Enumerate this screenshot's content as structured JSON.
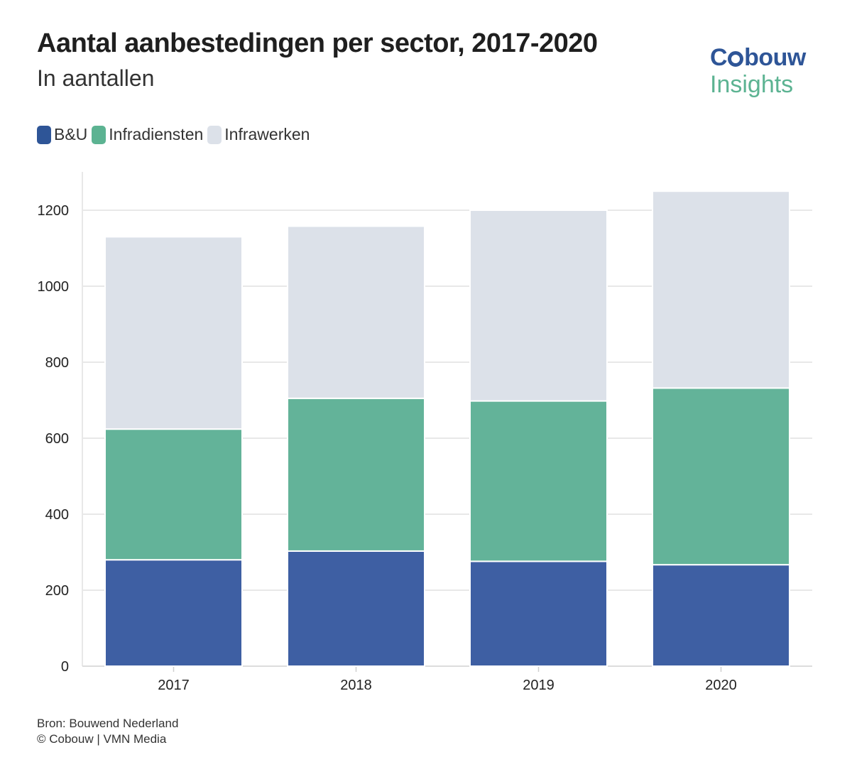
{
  "header": {
    "title": "Aantal aanbestedingen per sector, 2017-2020",
    "subtitle": "In aantallen"
  },
  "logo": {
    "brand_pre": "C",
    "brand_post": "bouw",
    "sub": "Insights"
  },
  "colors": {
    "bu": "#3e5fa3",
    "infradiensten": "#63b399",
    "infrawerken": "#dce1e9",
    "grid": "#e8e8e8"
  },
  "chart_data": {
    "type": "bar",
    "stacked": true,
    "title": "Aantal aanbestedingen per sector, 2017-2020",
    "subtitle": "In aantallen",
    "xlabel": "",
    "ylabel": "",
    "categories": [
      "2017",
      "2018",
      "2019",
      "2020"
    ],
    "series": [
      {
        "name": "B&U",
        "color": "#3e5fa3",
        "values": [
          280,
          303,
          276,
          267
        ]
      },
      {
        "name": "Infradiensten",
        "color": "#63b399",
        "values": [
          344,
          402,
          422,
          465
        ]
      },
      {
        "name": "Infrawerken",
        "color": "#dce1e9",
        "values": [
          506,
          453,
          502,
          518
        ]
      }
    ],
    "ylim": [
      0,
      1300
    ],
    "yticks": [
      0,
      200,
      400,
      600,
      800,
      1000,
      1200
    ],
    "grid": true,
    "legend": "top-left"
  },
  "footer": {
    "source": "Bron: Bouwend Nederland",
    "copyright": "© Cobouw | VMN Media"
  }
}
